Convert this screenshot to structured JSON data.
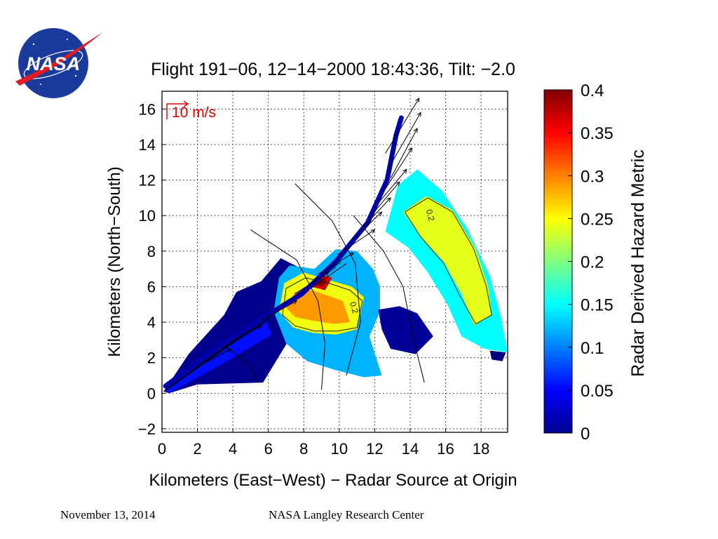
{
  "logo": {
    "text": "NASA",
    "colors": {
      "disc": "#1a3a9c",
      "swoosh": "#e01b22",
      "text": "#ffffff"
    }
  },
  "footer": {
    "date": "November 13, 2014",
    "center": "NASA Langley Research Center"
  },
  "chart_data": {
    "type": "heatmap",
    "title": "Flight 191−06, 12−14−2000 18:43:36, Tilt: −2.0",
    "xlabel": "Kilometers (East−West) − Radar Source at Origin",
    "ylabel": "Kilometers (North−South)",
    "xlim": [
      0,
      19.5
    ],
    "ylim": [
      -2.2,
      17
    ],
    "x_ticks": [
      0,
      2,
      4,
      6,
      8,
      10,
      12,
      14,
      16,
      18
    ],
    "x_tick_labels": [
      "0",
      "2",
      "4",
      "6",
      "8",
      "10",
      "12",
      "14",
      "16",
      "18"
    ],
    "y_ticks": [
      -2,
      0,
      2,
      4,
      6,
      8,
      10,
      12,
      14,
      16
    ],
    "y_tick_labels": [
      "−2",
      "0",
      "2",
      "4",
      "6",
      "8",
      "10",
      "12",
      "14",
      "16"
    ],
    "grid": true,
    "grid_style": "dotted",
    "vector_scale_label": "10 m/s",
    "colorbar": {
      "label": "Radar Derived Hazard Metric",
      "range": [
        0,
        0.4
      ],
      "ticks": [
        0,
        0.05,
        0.1,
        0.15,
        0.2,
        0.25,
        0.3,
        0.35,
        0.4
      ],
      "tick_labels": [
        "0",
        "0.05",
        "0.1",
        "0.15",
        "0.2",
        "0.25",
        "0.3",
        "0.35",
        "0.4"
      ],
      "colormap": "jet"
    },
    "contour_labels": [
      {
        "text": "0.2",
        "x": 10.6,
        "y": 5.1
      },
      {
        "text": "0.2",
        "x": 14.9,
        "y": 10.3
      }
    ],
    "regions": [
      {
        "name": "near-wedge",
        "value": 0.005,
        "points": [
          [
            0.1,
            0.1
          ],
          [
            1.5,
            2.2
          ],
          [
            3.5,
            4.4
          ],
          [
            4.2,
            5.7
          ],
          [
            5.6,
            6.3
          ],
          [
            6.7,
            7.6
          ],
          [
            7.9,
            7.0
          ],
          [
            6.9,
            5.0
          ],
          [
            7.1,
            2.9
          ],
          [
            5.7,
            0.6
          ],
          [
            2.0,
            0.5
          ],
          [
            0.4,
            0.0
          ]
        ]
      },
      {
        "name": "low-band",
        "value": 0.055,
        "points": [
          [
            0.2,
            0.1
          ],
          [
            3.5,
            2.5
          ],
          [
            5.9,
            4.0
          ],
          [
            6.2,
            3.3
          ],
          [
            3.5,
            1.7
          ],
          [
            0.4,
            0.0
          ]
        ]
      },
      {
        "name": "mid-cell",
        "value": 0.12,
        "points": [
          [
            6.3,
            4.6
          ],
          [
            6.6,
            6.5
          ],
          [
            7.2,
            7.2
          ],
          [
            8.6,
            7.0
          ],
          [
            9.8,
            8.1
          ],
          [
            11.0,
            8.0
          ],
          [
            11.9,
            7.0
          ],
          [
            12.3,
            6.0
          ],
          [
            12.3,
            4.6
          ],
          [
            11.7,
            3.2
          ],
          [
            12.4,
            1.0
          ],
          [
            11.4,
            0.9
          ],
          [
            9.8,
            1.3
          ],
          [
            8.2,
            1.8
          ],
          [
            7.0,
            2.8
          ]
        ]
      },
      {
        "name": "mid-yellow",
        "value": 0.245,
        "points": [
          [
            6.6,
            4.6
          ],
          [
            6.9,
            6.2
          ],
          [
            8.0,
            6.8
          ],
          [
            9.3,
            6.4
          ],
          [
            10.7,
            6.0
          ],
          [
            11.4,
            5.4
          ],
          [
            11.0,
            3.6
          ],
          [
            9.8,
            3.3
          ],
          [
            8.5,
            3.4
          ],
          [
            7.4,
            3.7
          ]
        ]
      },
      {
        "name": "mid-orange",
        "value": 0.29,
        "points": [
          [
            7.0,
            4.8
          ],
          [
            7.5,
            5.7
          ],
          [
            8.5,
            5.8
          ],
          [
            10.2,
            5.2
          ],
          [
            10.6,
            4.0
          ],
          [
            9.7,
            3.9
          ],
          [
            8.4,
            4.1
          ],
          [
            7.5,
            4.3
          ]
        ]
      },
      {
        "name": "core-red",
        "value": 0.37,
        "points": [
          [
            8.4,
            6.0
          ],
          [
            8.9,
            6.7
          ],
          [
            9.6,
            6.5
          ],
          [
            9.2,
            5.8
          ]
        ]
      },
      {
        "name": "core-darkred",
        "value": 0.4,
        "points": [
          [
            8.6,
            6.2
          ],
          [
            8.9,
            6.5
          ],
          [
            9.3,
            6.3
          ],
          [
            9.0,
            6.0
          ]
        ]
      },
      {
        "name": "blue-step",
        "value": 0.01,
        "points": [
          [
            12.2,
            4.7
          ],
          [
            13.4,
            4.9
          ],
          [
            14.4,
            4.5
          ],
          [
            15.3,
            3.2
          ],
          [
            14.3,
            2.2
          ],
          [
            12.9,
            2.5
          ],
          [
            12.4,
            3.6
          ]
        ]
      },
      {
        "name": "far-sector",
        "value": 0.15,
        "points": [
          [
            12.6,
            9.1
          ],
          [
            13.3,
            11.7
          ],
          [
            14.4,
            12.6
          ],
          [
            15.8,
            11.4
          ],
          [
            17.2,
            9.3
          ],
          [
            18.5,
            6.6
          ],
          [
            19.1,
            4.4
          ],
          [
            19.5,
            2.3
          ],
          [
            18.2,
            2.5
          ],
          [
            16.9,
            3.2
          ],
          [
            16.1,
            5.0
          ],
          [
            15.0,
            6.8
          ],
          [
            13.9,
            8.2
          ]
        ]
      },
      {
        "name": "far-yellow",
        "value": 0.24,
        "points": [
          [
            13.6,
            10.2
          ],
          [
            14.9,
            11.1
          ],
          [
            16.4,
            10.3
          ],
          [
            17.7,
            8.1
          ],
          [
            18.4,
            6.0
          ],
          [
            18.6,
            4.4
          ],
          [
            17.6,
            3.8
          ],
          [
            16.9,
            5.6
          ],
          [
            15.9,
            7.4
          ],
          [
            14.6,
            8.8
          ]
        ]
      },
      {
        "name": "far-tip",
        "value": 0.0,
        "points": [
          [
            18.5,
            2.4
          ],
          [
            19.4,
            2.3
          ],
          [
            19.2,
            1.8
          ],
          [
            18.6,
            1.9
          ]
        ]
      }
    ],
    "contours": [
      {
        "name": "mid-contour",
        "points": [
          [
            6.8,
            4.4
          ],
          [
            7.0,
            5.9
          ],
          [
            8.1,
            6.5
          ],
          [
            9.4,
            6.2
          ],
          [
            10.6,
            5.8
          ],
          [
            11.3,
            5.2
          ],
          [
            11.0,
            3.7
          ],
          [
            9.9,
            3.5
          ],
          [
            8.6,
            3.5
          ],
          [
            7.5,
            3.8
          ],
          [
            6.8,
            4.4
          ]
        ]
      },
      {
        "name": "far-contour",
        "points": [
          [
            13.7,
            10.2
          ],
          [
            15.0,
            11.0
          ],
          [
            16.4,
            10.2
          ],
          [
            17.6,
            8.1
          ],
          [
            18.3,
            6.0
          ],
          [
            18.6,
            4.4
          ],
          [
            17.7,
            3.9
          ],
          [
            16.8,
            5.5
          ],
          [
            15.9,
            7.3
          ],
          [
            14.6,
            8.8
          ],
          [
            13.7,
            10.2
          ]
        ]
      }
    ],
    "flight_track": {
      "value": 0.02,
      "points": [
        [
          0.2,
          0.4
        ],
        [
          3.0,
          2.5
        ],
        [
          5.8,
          4.3
        ],
        [
          7.9,
          5.6
        ],
        [
          9.8,
          7.4
        ],
        [
          11.6,
          9.6
        ],
        [
          12.7,
          12.0
        ],
        [
          13.2,
          14.5
        ],
        [
          13.5,
          15.5
        ]
      ]
    },
    "radial_lines": [
      {
        "from": [
          0.1,
          0.1
        ],
        "to": [
          10.1,
          7.4
        ]
      },
      {
        "from": [
          0.1,
          0.1
        ],
        "to": [
          10.4,
          7.3
        ]
      },
      {
        "from": [
          0.1,
          0.1
        ],
        "to": [
          9.8,
          7.1
        ]
      }
    ],
    "range_arcs": [
      {
        "points": [
          [
            5.0,
            9.2
          ],
          [
            7.6,
            7.5
          ],
          [
            8.8,
            5.2
          ],
          [
            9.2,
            2.8
          ],
          [
            9.0,
            0.2
          ]
        ]
      },
      {
        "points": [
          [
            7.5,
            11.8
          ],
          [
            9.6,
            9.7
          ],
          [
            10.9,
            7.3
          ],
          [
            11.2,
            4.0
          ],
          [
            10.4,
            1.0
          ]
        ]
      },
      {
        "points": [
          [
            10.8,
            10.0
          ],
          [
            12.5,
            8.0
          ],
          [
            13.6,
            6.0
          ],
          [
            14.2,
            3.0
          ],
          [
            14.8,
            0.6
          ]
        ]
      },
      {
        "points": [
          [
            3.3,
            2.8
          ],
          [
            4.2,
            2.2
          ],
          [
            5.0,
            1.5
          ],
          [
            5.4,
            0.6
          ]
        ]
      }
    ],
    "vectors": [
      {
        "x0": 12.6,
        "y0": 13.5,
        "x1": 14.5,
        "y1": 16.6
      },
      {
        "x0": 12.8,
        "y0": 12.7,
        "x1": 14.6,
        "y1": 15.8
      },
      {
        "x0": 12.9,
        "y0": 12.1,
        "x1": 14.4,
        "y1": 14.9
      },
      {
        "x0": 12.6,
        "y0": 11.5,
        "x1": 14.1,
        "y1": 13.8
      },
      {
        "x0": 12.2,
        "y0": 10.7,
        "x1": 13.8,
        "y1": 12.6
      },
      {
        "x0": 11.8,
        "y0": 10.0,
        "x1": 13.4,
        "y1": 11.9
      },
      {
        "x0": 11.3,
        "y0": 9.3,
        "x1": 12.9,
        "y1": 11.0
      },
      {
        "x0": 10.7,
        "y0": 8.6,
        "x1": 12.4,
        "y1": 10.2
      },
      {
        "x0": 9.9,
        "y0": 7.8,
        "x1": 12.0,
        "y1": 9.2
      },
      {
        "x0": 8.8,
        "y0": 6.7,
        "x1": 10.8,
        "y1": 7.9
      },
      {
        "x0": 7.5,
        "y0": 5.6,
        "x1": 9.4,
        "y1": 6.8
      },
      {
        "x0": 5.6,
        "y0": 4.1,
        "x1": 7.6,
        "y1": 5.2
      },
      {
        "x0": 3.8,
        "y0": 2.8,
        "x1": 5.6,
        "y1": 3.8
      },
      {
        "x0": 2.0,
        "y0": 1.5,
        "x1": 3.9,
        "y1": 2.5
      }
    ]
  }
}
